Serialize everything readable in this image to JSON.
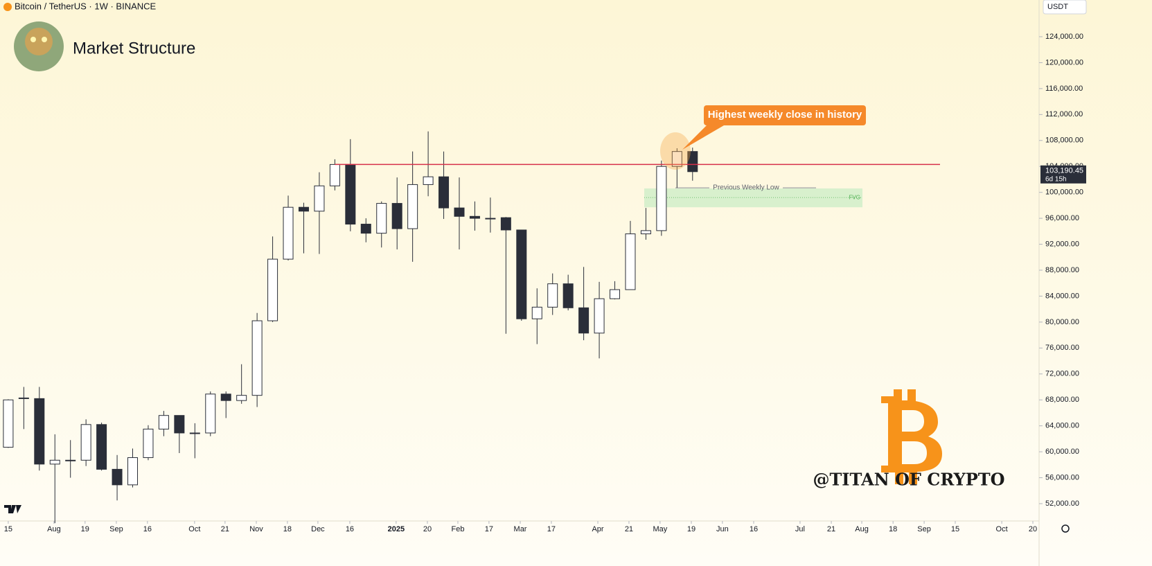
{
  "header": {
    "symbol": "Bitcoin / TetherUS · 1W · BINANCE",
    "title": "Market Structure",
    "currency": "USDT"
  },
  "chart_data": {
    "type": "candlestick",
    "ylim": [
      49330,
      129660
    ],
    "yticks": [
      {
        "value": 52000,
        "label": "52,000.00"
      },
      {
        "value": 56000,
        "label": "56,000.00"
      },
      {
        "value": 60000,
        "label": "60,000.00"
      },
      {
        "value": 64000,
        "label": "64,000.00"
      },
      {
        "value": 68000,
        "label": "68,000.00"
      },
      {
        "value": 72000,
        "label": "72,000.00"
      },
      {
        "value": 76000,
        "label": "76,000.00"
      },
      {
        "value": 80000,
        "label": "80,000.00"
      },
      {
        "value": 84000,
        "label": "84,000.00"
      },
      {
        "value": 88000,
        "label": "88,000.00"
      },
      {
        "value": 92000,
        "label": "92,000.00"
      },
      {
        "value": 96000,
        "label": "96,000.00"
      },
      {
        "value": 100000,
        "label": "100,000.00"
      },
      {
        "value": 104000,
        "label": "104,000.00"
      },
      {
        "value": 108000,
        "label": "108,000.00"
      },
      {
        "value": 112000,
        "label": "112,000.00"
      },
      {
        "value": 116000,
        "label": "116,000.00"
      },
      {
        "value": 120000,
        "label": "120,000.00"
      },
      {
        "value": 124000,
        "label": "124,000.00"
      }
    ],
    "xlim": [
      -0.53,
      66.28
    ],
    "xticks": [
      {
        "value": 0,
        "label": "15"
      },
      {
        "value": 2.94,
        "label": "Aug"
      },
      {
        "value": 4.94,
        "label": "19"
      },
      {
        "value": 6.95,
        "label": "Sep"
      },
      {
        "value": 8.95,
        "label": "16"
      },
      {
        "value": 11.98,
        "label": "Oct"
      },
      {
        "value": 13.94,
        "label": "21"
      },
      {
        "value": 15.95,
        "label": "Nov"
      },
      {
        "value": 17.95,
        "label": "18"
      },
      {
        "value": 19.91,
        "label": "Dec"
      },
      {
        "value": 21.96,
        "label": "16"
      },
      {
        "value": 24.94,
        "label": "2025"
      },
      {
        "value": 26.95,
        "label": "20"
      },
      {
        "value": 28.91,
        "label": "Feb"
      },
      {
        "value": 30.91,
        "label": "17"
      },
      {
        "value": 32.92,
        "label": "Mar"
      },
      {
        "value": 34.92,
        "label": "17"
      },
      {
        "value": 37.91,
        "label": "Apr"
      },
      {
        "value": 39.91,
        "label": "21"
      },
      {
        "value": 41.91,
        "label": "May"
      },
      {
        "value": 43.92,
        "label": "19"
      },
      {
        "value": 45.92,
        "label": "Jun"
      },
      {
        "value": 47.93,
        "label": "16"
      },
      {
        "value": 50.91,
        "label": "Jul"
      },
      {
        "value": 52.92,
        "label": "21"
      },
      {
        "value": 54.88,
        "label": "Aug"
      },
      {
        "value": 56.89,
        "label": "18"
      },
      {
        "value": 58.89,
        "label": "Sep"
      },
      {
        "value": 60.89,
        "label": "15"
      },
      {
        "value": 63.88,
        "label": "Oct"
      },
      {
        "value": 65.88,
        "label": "20"
      }
    ],
    "up_color": "#ffffff",
    "down_color": "#2a2e39",
    "open": [
      60700,
      68200,
      68200,
      58100,
      58700,
      58700,
      64200,
      57300,
      54900,
      59100,
      63500,
      65600,
      62900,
      62900,
      68900,
      67900,
      68700,
      80200,
      89700,
      97700,
      97100,
      101000,
      104300,
      95100,
      93700,
      98300,
      94400,
      101200,
      102400,
      97600,
      96300,
      96000,
      96100,
      94200,
      80500,
      82300,
      85900,
      82200,
      78300,
      83600,
      85000,
      93600,
      94100,
      104000,
      106300
    ],
    "high": [
      68100,
      70000,
      70000,
      62700,
      61800,
      65000,
      64500,
      59500,
      60500,
      64100,
      66300,
      65600,
      64400,
      69300,
      69300,
      73500,
      81400,
      93200,
      99500,
      98400,
      103100,
      105100,
      108200,
      96000,
      98600,
      102300,
      106300,
      109400,
      106300,
      102300,
      98600,
      99200,
      96200,
      94200,
      85200,
      87500,
      87300,
      88500,
      86200,
      86300,
      95600,
      97600,
      104900,
      106800,
      106900
    ],
    "low": [
      60600,
      63500,
      57100,
      49000,
      56000,
      57800,
      57100,
      52500,
      54500,
      58700,
      62400,
      59800,
      59000,
      62400,
      65200,
      67400,
      66900,
      80000,
      89500,
      90600,
      90500,
      100300,
      94000,
      92300,
      91500,
      91200,
      89300,
      99400,
      95900,
      91200,
      94100,
      93800,
      78200,
      80200,
      76600,
      81100,
      81800,
      77200,
      74400,
      83500,
      85000,
      92700,
      93300,
      100700,
      101800
    ],
    "close": [
      68000,
      68300,
      58100,
      58700,
      58700,
      64200,
      57300,
      54900,
      59100,
      63500,
      65600,
      62900,
      62900,
      68900,
      67900,
      68700,
      80200,
      89700,
      97700,
      97100,
      101000,
      104300,
      95100,
      93700,
      98300,
      94400,
      101200,
      102400,
      97600,
      96300,
      96000,
      96000,
      94200,
      80500,
      82300,
      85900,
      82200,
      78300,
      83600,
      85000,
      93600,
      94100,
      104000,
      106300,
      103190.45
    ],
    "last_price": {
      "value": 103190.45,
      "label": "103,190.45"
    },
    "countdown": "6d 15h",
    "resistance": {
      "value": 104300,
      "color": "#d6304a"
    },
    "previous_weekly_low": {
      "value": 100700,
      "label": "Previous Weekly Low"
    },
    "fvg": {
      "values": [
        97700,
        100600
      ],
      "mid": 99200,
      "label": "FVG"
    },
    "callout": "Highest weekly close in history",
    "watermark": "@TITAN OF CRYPTO"
  }
}
